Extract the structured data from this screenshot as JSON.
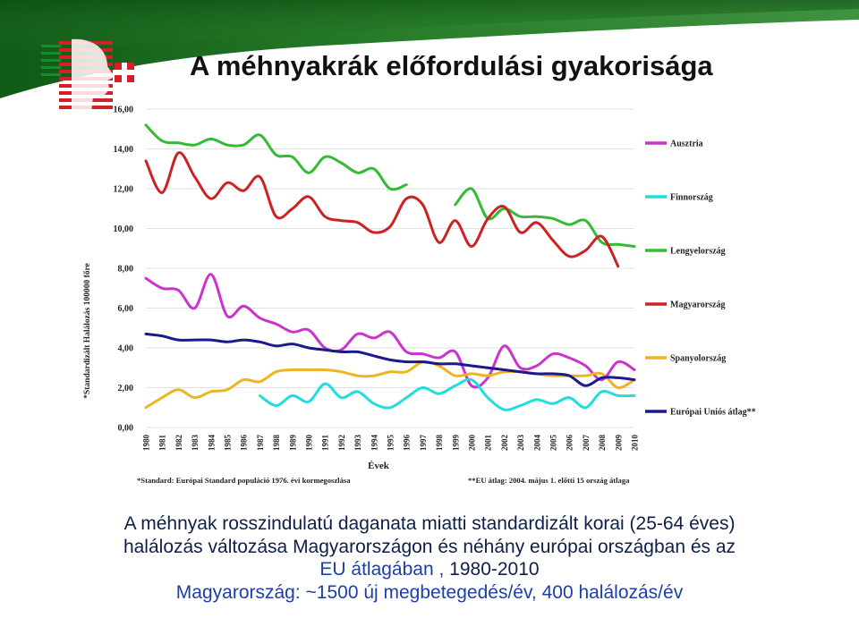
{
  "slide": {
    "title": "A méhnyakrák előfordulási gyakorisága",
    "caption_line1": "A méhnyak rosszindulatú daganata miatti standardizált korai (25-64 éves)",
    "caption_line2": "halálozás változása Magyarországon és néhány európai országban és az",
    "caption_line3_blue": "EU átlagában ,",
    "caption_line3_rest": " 1980-2010",
    "caption_line4": "Magyarország: ~1500 új megbetegedés/év,  400 halálozás/év",
    "colors": {
      "banner": "#1c6b22",
      "caption_text": "#0d1f4a",
      "caption_highlight": "#1c3fa8",
      "logo_red": "#d42027",
      "logo_green": "#1c8a2c"
    }
  },
  "chart_data": {
    "type": "line",
    "ylabel": "*Standardizált Halálozás 100000 főre",
    "xlabel": "Évek",
    "ylim": [
      0,
      16
    ],
    "yticks": [
      "0,00",
      "2,00",
      "4,00",
      "6,00",
      "8,00",
      "10,00",
      "12,00",
      "14,00",
      "16,00"
    ],
    "x": [
      1980,
      1981,
      1982,
      1983,
      1984,
      1985,
      1986,
      1987,
      1988,
      1989,
      1990,
      1991,
      1992,
      1993,
      1994,
      1995,
      1996,
      1997,
      1998,
      1999,
      2000,
      2001,
      2002,
      2003,
      2004,
      2005,
      2006,
      2007,
      2008,
      2009,
      2010
    ],
    "footnote_left": "*Standard: Európai Standard populáció 1976. évi kormegoszlása",
    "footnote_right": "**EU átlag: 2004. május 1. előtti 15 ország átlaga",
    "legend_position": "right",
    "series": [
      {
        "name": "Ausztria",
        "color": "#cc33cc",
        "values": [
          7.5,
          7.0,
          6.9,
          6.0,
          7.7,
          5.6,
          6.1,
          5.5,
          5.2,
          4.8,
          4.9,
          4.0,
          3.9,
          4.7,
          4.5,
          4.8,
          3.8,
          3.7,
          3.5,
          3.8,
          2.1,
          2.5,
          4.1,
          3.0,
          3.1,
          3.7,
          3.5,
          3.1,
          2.4,
          3.3,
          2.9
        ]
      },
      {
        "name": "Finnország",
        "color": "#22dddd",
        "values": [
          null,
          null,
          null,
          null,
          null,
          null,
          null,
          1.6,
          1.1,
          1.6,
          1.3,
          2.2,
          1.5,
          1.8,
          1.2,
          1.0,
          1.5,
          2.0,
          1.7,
          2.1,
          2.4,
          1.5,
          0.9,
          1.1,
          1.4,
          1.2,
          1.5,
          1.0,
          1.8,
          1.6,
          1.6
        ]
      },
      {
        "name": "Lengyelország",
        "color": "#33bb33",
        "values": [
          15.2,
          14.4,
          14.3,
          14.2,
          14.5,
          14.2,
          14.2,
          14.7,
          13.7,
          13.6,
          12.8,
          13.6,
          13.3,
          12.8,
          13.0,
          12.0,
          12.2,
          null,
          null,
          11.2,
          12.0,
          10.5,
          11.0,
          10.6,
          10.6,
          10.5,
          10.2,
          10.4,
          9.3,
          9.2,
          9.1
        ]
      },
      {
        "name": "Magyarország",
        "color": "#cc2222",
        "values": [
          13.4,
          11.8,
          13.8,
          12.6,
          11.5,
          12.3,
          11.9,
          12.6,
          10.6,
          11.0,
          11.6,
          10.6,
          10.4,
          10.3,
          9.8,
          10.1,
          11.5,
          11.2,
          9.3,
          10.4,
          9.1,
          10.5,
          11.1,
          9.8,
          10.3,
          9.4,
          8.6,
          8.9,
          9.6,
          8.1,
          null
        ]
      },
      {
        "name": "Spanyolország",
        "color": "#eeb422",
        "values": [
          1.0,
          1.5,
          1.9,
          1.5,
          1.8,
          1.9,
          2.4,
          2.3,
          2.8,
          2.9,
          2.9,
          2.9,
          2.8,
          2.6,
          2.6,
          2.8,
          2.8,
          3.3,
          3.1,
          2.6,
          2.7,
          2.6,
          2.8,
          2.8,
          2.7,
          2.6,
          2.6,
          2.6,
          2.7,
          2.0,
          2.4
        ]
      },
      {
        "name": "Európai Uniós átlag**",
        "color": "#1a1a8c",
        "values": [
          4.7,
          4.6,
          4.4,
          4.4,
          4.4,
          4.3,
          4.4,
          4.3,
          4.1,
          4.2,
          4.0,
          3.9,
          3.8,
          3.8,
          3.6,
          3.4,
          3.3,
          3.3,
          3.2,
          3.2,
          3.1,
          3.0,
          2.9,
          2.8,
          2.7,
          2.7,
          2.6,
          2.1,
          2.5,
          2.5,
          2.4
        ]
      }
    ]
  }
}
